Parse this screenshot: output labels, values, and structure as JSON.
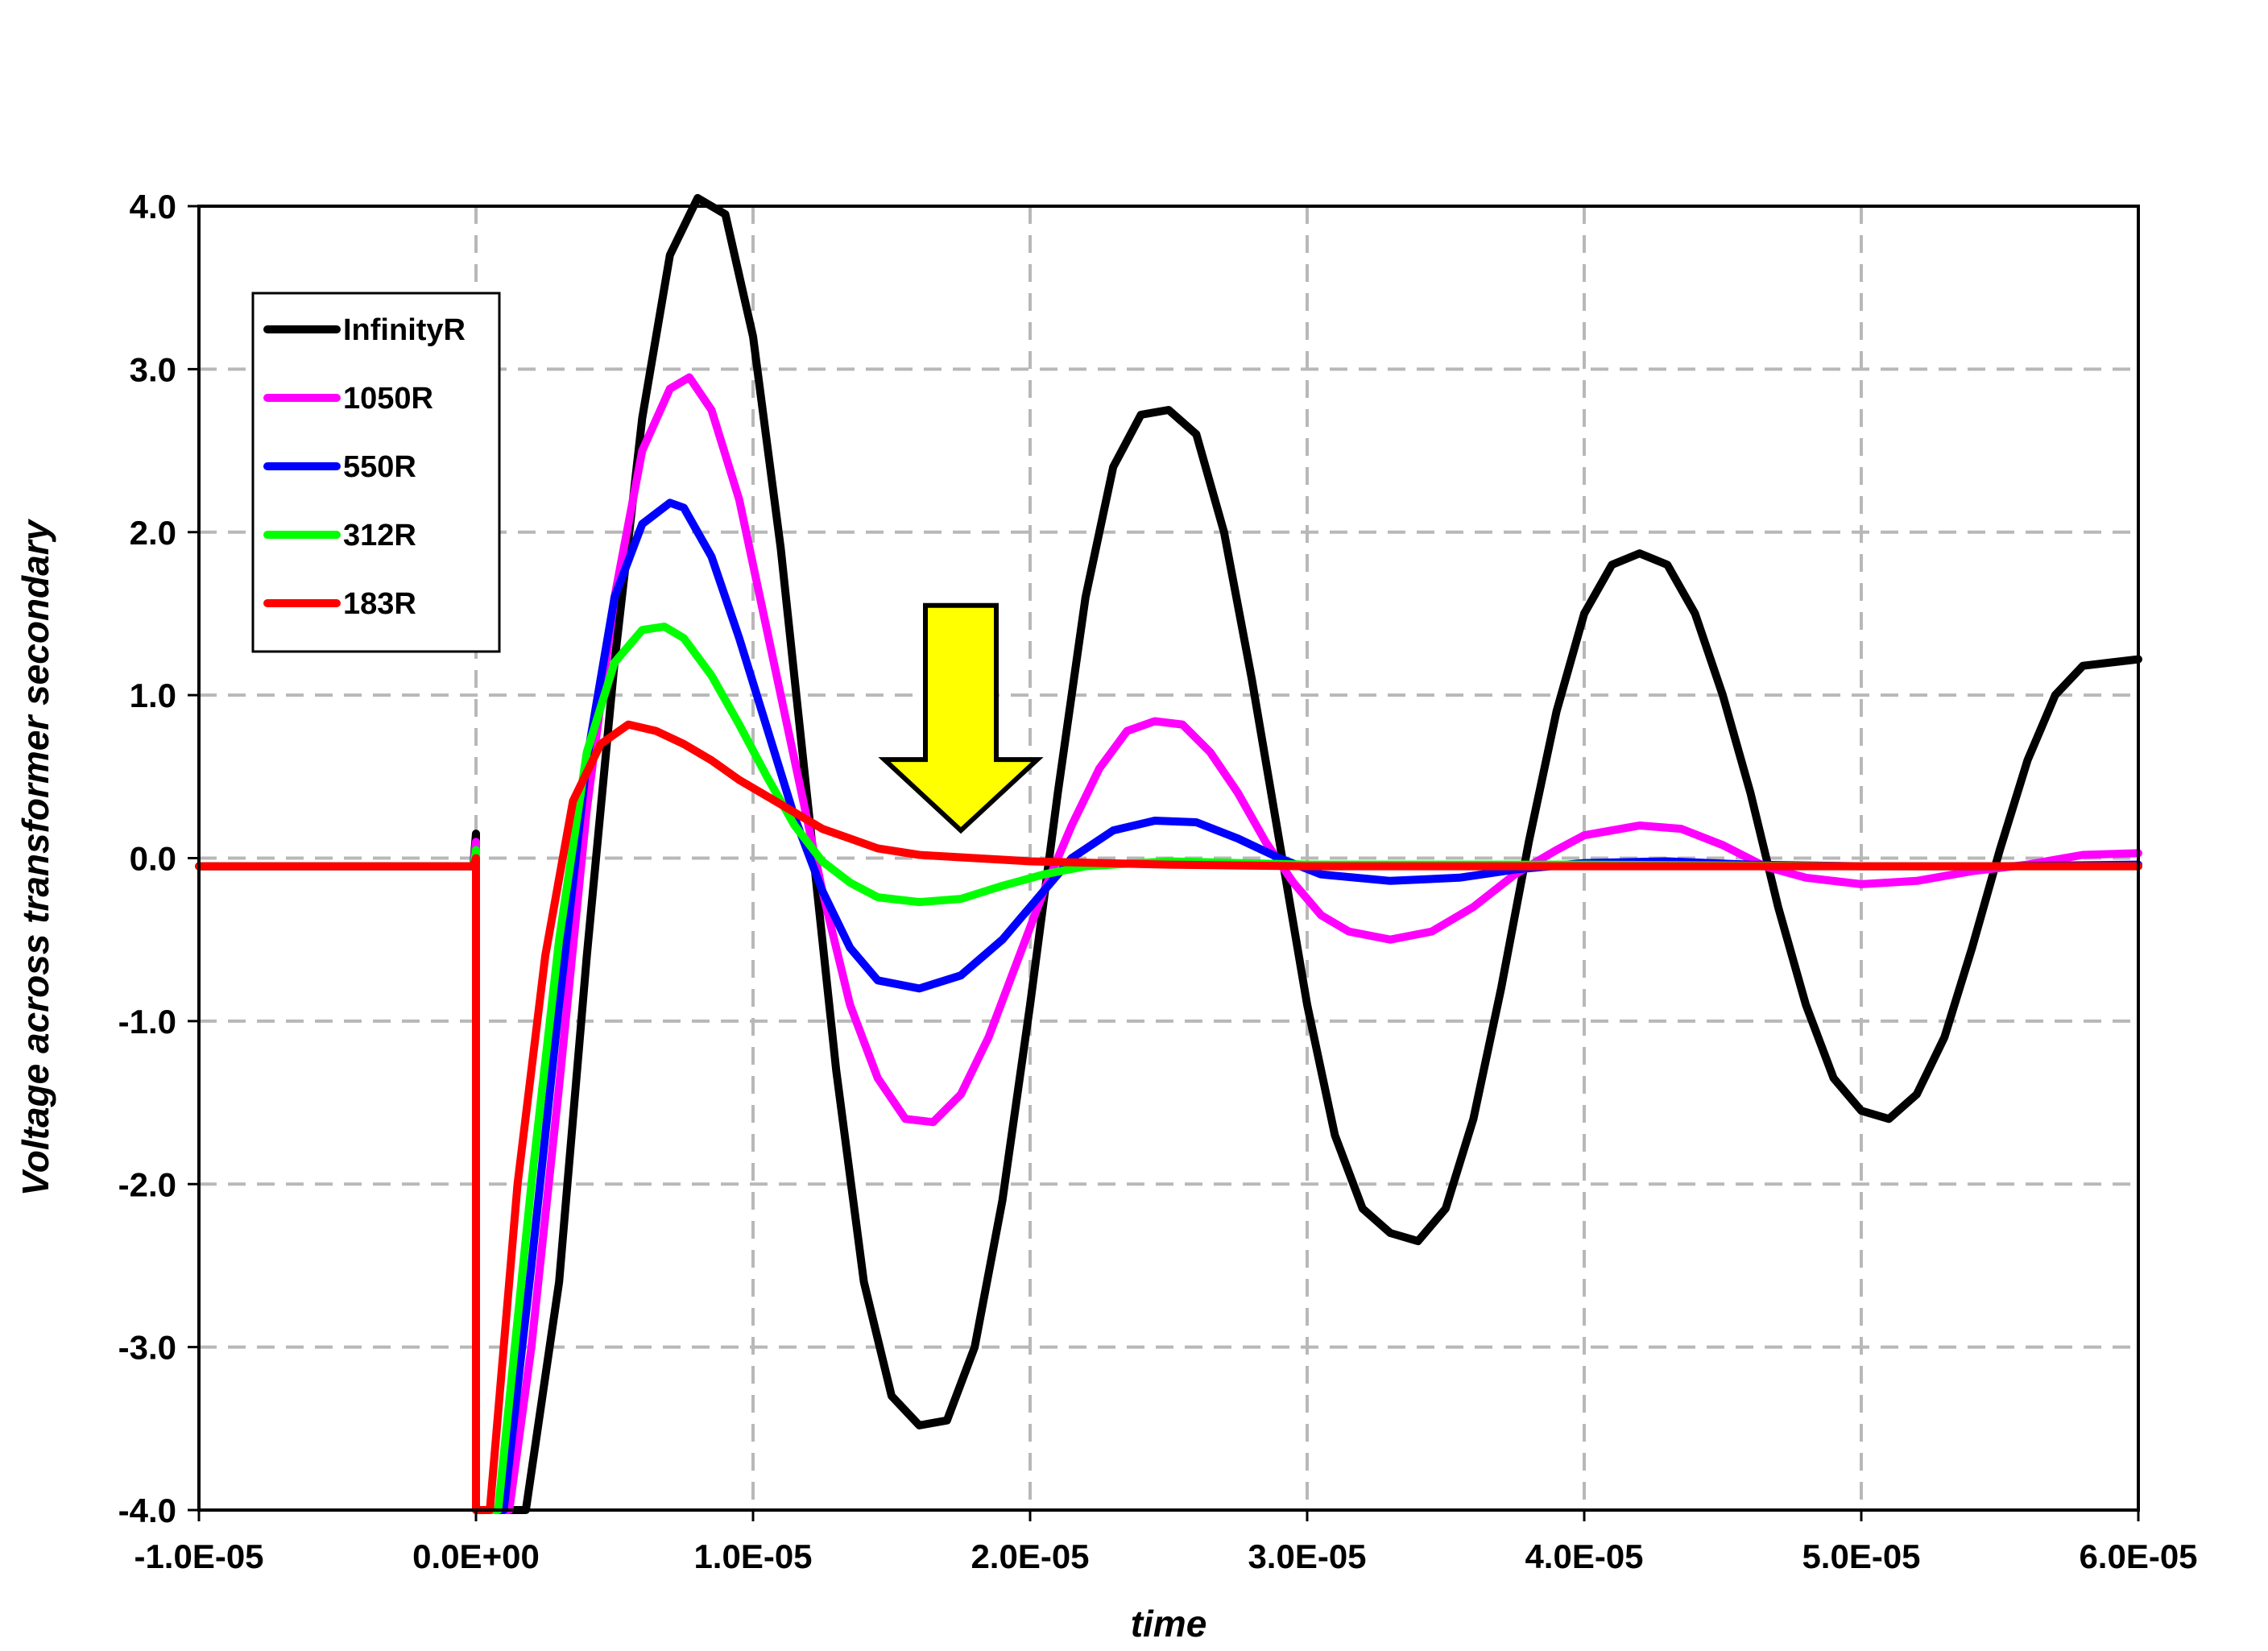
{
  "chart_data": {
    "type": "line",
    "title": "",
    "xlabel": "time",
    "ylabel": "Voltage across transformer secondary",
    "xlim": [
      -1e-05,
      6e-05
    ],
    "ylim": [
      -4.0,
      4.0
    ],
    "x_ticks": [
      -1e-05,
      0.0,
      1e-05,
      2e-05,
      3e-05,
      4e-05,
      5e-05,
      6e-05
    ],
    "x_tick_labels": [
      "-1.0E-05",
      "0.0E+00",
      "1.0E-05",
      "2.0E-05",
      "3.0E-05",
      "4.0E-05",
      "5.0E-05",
      "6.0E-05"
    ],
    "y_ticks": [
      4.0,
      3.0,
      2.0,
      1.0,
      0.0,
      -1.0,
      -2.0,
      -3.0,
      -4.0
    ],
    "y_tick_labels": [
      "4.0",
      "3.0",
      "2.0",
      "1.0",
      "0.0",
      "-1.0",
      "-2.0",
      "-3.0",
      "-4.0"
    ],
    "grid": true,
    "legend_position": "top-left",
    "series": [
      {
        "name": "InfinityR",
        "color": "#000000",
        "points": [
          [
            -1e-05,
            -0.05
          ],
          [
            -1e-07,
            -0.05
          ],
          [
            0.0,
            0.15
          ],
          [
            0.0,
            -4.0
          ],
          [
            1.8e-06,
            -4.0
          ],
          [
            3e-06,
            -2.6
          ],
          [
            4e-06,
            -0.6
          ],
          [
            5e-06,
            1.2
          ],
          [
            6e-06,
            2.7
          ],
          [
            7e-06,
            3.7
          ],
          [
            8e-06,
            4.05
          ],
          [
            9e-06,
            3.95
          ],
          [
            1e-05,
            3.2
          ],
          [
            1.1e-05,
            1.9
          ],
          [
            1.2e-05,
            0.3
          ],
          [
            1.3e-05,
            -1.3
          ],
          [
            1.4e-05,
            -2.6
          ],
          [
            1.5e-05,
            -3.3
          ],
          [
            1.6e-05,
            -3.48
          ],
          [
            1.7e-05,
            -3.45
          ],
          [
            1.8e-05,
            -3.0
          ],
          [
            1.9e-05,
            -2.1
          ],
          [
            2e-05,
            -0.9
          ],
          [
            2.1e-05,
            0.4
          ],
          [
            2.2e-05,
            1.6
          ],
          [
            2.3e-05,
            2.4
          ],
          [
            2.4e-05,
            2.72
          ],
          [
            2.5e-05,
            2.75
          ],
          [
            2.6e-05,
            2.6
          ],
          [
            2.7e-05,
            2.0
          ],
          [
            2.8e-05,
            1.1
          ],
          [
            2.9e-05,
            0.1
          ],
          [
            3e-05,
            -0.9
          ],
          [
            3.1e-05,
            -1.7
          ],
          [
            3.2e-05,
            -2.15
          ],
          [
            3.3e-05,
            -2.3
          ],
          [
            3.4e-05,
            -2.35
          ],
          [
            3.5e-05,
            -2.15
          ],
          [
            3.6e-05,
            -1.6
          ],
          [
            3.7e-05,
            -0.8
          ],
          [
            3.8e-05,
            0.1
          ],
          [
            3.9e-05,
            0.9
          ],
          [
            4e-05,
            1.5
          ],
          [
            4.1e-05,
            1.8
          ],
          [
            4.2e-05,
            1.87
          ],
          [
            4.3e-05,
            1.8
          ],
          [
            4.4e-05,
            1.5
          ],
          [
            4.5e-05,
            1.0
          ],
          [
            4.6e-05,
            0.4
          ],
          [
            4.7e-05,
            -0.3
          ],
          [
            4.8e-05,
            -0.9
          ],
          [
            4.9e-05,
            -1.35
          ],
          [
            5e-05,
            -1.55
          ],
          [
            5.1e-05,
            -1.6
          ],
          [
            5.2e-05,
            -1.45
          ],
          [
            5.3e-05,
            -1.1
          ],
          [
            5.4e-05,
            -0.55
          ],
          [
            5.5e-05,
            0.05
          ],
          [
            5.6e-05,
            0.6
          ],
          [
            5.7e-05,
            1.0
          ],
          [
            5.8e-05,
            1.18
          ],
          [
            5.9e-05,
            1.2
          ],
          [
            6e-05,
            1.22
          ]
        ]
      },
      {
        "name": "1050R",
        "color": "#ff00ff",
        "points": [
          [
            -1e-05,
            -0.05
          ],
          [
            -1e-07,
            -0.05
          ],
          [
            0.0,
            0.1
          ],
          [
            0.0,
            -4.0
          ],
          [
            1.2e-06,
            -4.0
          ],
          [
            2e-06,
            -3.0
          ],
          [
            3e-06,
            -1.4
          ],
          [
            4e-06,
            0.3
          ],
          [
            5e-06,
            1.6
          ],
          [
            6e-06,
            2.5
          ],
          [
            7e-06,
            2.88
          ],
          [
            7.7e-06,
            2.95
          ],
          [
            8.5e-06,
            2.75
          ],
          [
            9.5e-06,
            2.2
          ],
          [
            1.05e-05,
            1.4
          ],
          [
            1.15e-05,
            0.6
          ],
          [
            1.25e-05,
            -0.2
          ],
          [
            1.35e-05,
            -0.9
          ],
          [
            1.45e-05,
            -1.35
          ],
          [
            1.55e-05,
            -1.6
          ],
          [
            1.65e-05,
            -1.62
          ],
          [
            1.75e-05,
            -1.45
          ],
          [
            1.85e-05,
            -1.1
          ],
          [
            1.95e-05,
            -0.65
          ],
          [
            2.05e-05,
            -0.2
          ],
          [
            2.15e-05,
            0.2
          ],
          [
            2.25e-05,
            0.55
          ],
          [
            2.35e-05,
            0.78
          ],
          [
            2.45e-05,
            0.84
          ],
          [
            2.55e-05,
            0.82
          ],
          [
            2.65e-05,
            0.65
          ],
          [
            2.75e-05,
            0.4
          ],
          [
            2.85e-05,
            0.1
          ],
          [
            2.95e-05,
            -0.15
          ],
          [
            3.05e-05,
            -0.35
          ],
          [
            3.15e-05,
            -0.45
          ],
          [
            3.3e-05,
            -0.5
          ],
          [
            3.45e-05,
            -0.45
          ],
          [
            3.6e-05,
            -0.3
          ],
          [
            3.75e-05,
            -0.1
          ],
          [
            3.9e-05,
            0.05
          ],
          [
            4e-05,
            0.14
          ],
          [
            4.2e-05,
            0.2
          ],
          [
            4.35e-05,
            0.18
          ],
          [
            4.5e-05,
            0.08
          ],
          [
            4.65e-05,
            -0.05
          ],
          [
            4.8e-05,
            -0.12
          ],
          [
            5e-05,
            -0.16
          ],
          [
            5.2e-05,
            -0.14
          ],
          [
            5.4e-05,
            -0.08
          ],
          [
            5.6e-05,
            -0.04
          ],
          [
            5.8e-05,
            0.02
          ],
          [
            6e-05,
            0.03
          ]
        ]
      },
      {
        "name": "550R",
        "color": "#0000ff",
        "points": [
          [
            -1e-05,
            -0.05
          ],
          [
            -1e-07,
            -0.05
          ],
          [
            0.0,
            0.05
          ],
          [
            0.0,
            -4.0
          ],
          [
            1e-06,
            -4.0
          ],
          [
            2e-06,
            -2.5
          ],
          [
            3e-06,
            -0.9
          ],
          [
            4e-06,
            0.6
          ],
          [
            5e-06,
            1.6
          ],
          [
            6e-06,
            2.05
          ],
          [
            7e-06,
            2.18
          ],
          [
            7.5e-06,
            2.15
          ],
          [
            8.5e-06,
            1.85
          ],
          [
            9.5e-06,
            1.35
          ],
          [
            1.05e-05,
            0.8
          ],
          [
            1.15e-05,
            0.25
          ],
          [
            1.25e-05,
            -0.2
          ],
          [
            1.35e-05,
            -0.55
          ],
          [
            1.45e-05,
            -0.75
          ],
          [
            1.6e-05,
            -0.8
          ],
          [
            1.75e-05,
            -0.72
          ],
          [
            1.9e-05,
            -0.5
          ],
          [
            2.05e-05,
            -0.2
          ],
          [
            2.15e-05,
            0.0
          ],
          [
            2.3e-05,
            0.17
          ],
          [
            2.45e-05,
            0.23
          ],
          [
            2.6e-05,
            0.22
          ],
          [
            2.75e-05,
            0.12
          ],
          [
            2.9e-05,
            0.0
          ],
          [
            3.05e-05,
            -0.1
          ],
          [
            3.3e-05,
            -0.14
          ],
          [
            3.55e-05,
            -0.12
          ],
          [
            3.75e-05,
            -0.07
          ],
          [
            4e-05,
            -0.03
          ],
          [
            4.3e-05,
            -0.02
          ],
          [
            4.6e-05,
            -0.04
          ],
          [
            5e-05,
            -0.05
          ],
          [
            5.5e-05,
            -0.05
          ],
          [
            6e-05,
            -0.04
          ]
        ]
      },
      {
        "name": "312R",
        "color": "#00ff00",
        "points": [
          [
            -1e-05,
            -0.05
          ],
          [
            -1e-07,
            -0.05
          ],
          [
            0.0,
            0.05
          ],
          [
            0.0,
            -4.0
          ],
          [
            8e-07,
            -4.0
          ],
          [
            2e-06,
            -2.0
          ],
          [
            3e-06,
            -0.5
          ],
          [
            4e-06,
            0.65
          ],
          [
            5e-06,
            1.2
          ],
          [
            6e-06,
            1.4
          ],
          [
            6.8e-06,
            1.42
          ],
          [
            7.5e-06,
            1.35
          ],
          [
            8.5e-06,
            1.12
          ],
          [
            9.5e-06,
            0.82
          ],
          [
            1.05e-05,
            0.5
          ],
          [
            1.15e-05,
            0.2
          ],
          [
            1.25e-05,
            -0.02
          ],
          [
            1.35e-05,
            -0.15
          ],
          [
            1.45e-05,
            -0.24
          ],
          [
            1.6e-05,
            -0.27
          ],
          [
            1.75e-05,
            -0.25
          ],
          [
            1.9e-05,
            -0.17
          ],
          [
            2.05e-05,
            -0.1
          ],
          [
            2.2e-05,
            -0.05
          ],
          [
            2.5e-05,
            -0.02
          ],
          [
            3e-05,
            -0.04
          ],
          [
            4e-05,
            -0.04
          ],
          [
            5e-05,
            -0.05
          ],
          [
            6e-05,
            -0.05
          ]
        ]
      },
      {
        "name": "183R",
        "color": "#ff0000",
        "points": [
          [
            -1e-05,
            -0.05
          ],
          [
            -1e-07,
            -0.05
          ],
          [
            0.0,
            0.0
          ],
          [
            0.0,
            -4.0
          ],
          [
            5e-07,
            -4.0
          ],
          [
            1.5e-06,
            -2.0
          ],
          [
            2.5e-06,
            -0.6
          ],
          [
            3.5e-06,
            0.35
          ],
          [
            4.5e-06,
            0.7
          ],
          [
            5.5e-06,
            0.82
          ],
          [
            6.5e-06,
            0.78
          ],
          [
            7.5e-06,
            0.7
          ],
          [
            8.5e-06,
            0.6
          ],
          [
            9.5e-06,
            0.48
          ],
          [
            1.05e-05,
            0.38
          ],
          [
            1.15e-05,
            0.28
          ],
          [
            1.25e-05,
            0.18
          ],
          [
            1.35e-05,
            0.12
          ],
          [
            1.45e-05,
            0.06
          ],
          [
            1.6e-05,
            0.02
          ],
          [
            1.8e-05,
            0.0
          ],
          [
            2e-05,
            -0.02
          ],
          [
            2.5e-05,
            -0.04
          ],
          [
            3e-05,
            -0.05
          ],
          [
            4e-05,
            -0.05
          ],
          [
            5e-05,
            -0.05
          ],
          [
            6e-05,
            -0.05
          ]
        ]
      }
    ],
    "annotations": [
      {
        "type": "arrow",
        "direction": "down",
        "color": "#ffff00",
        "outline": "#000000",
        "x": 1.75e-05,
        "y_top": 1.55,
        "y_tip": 0.17
      }
    ]
  }
}
